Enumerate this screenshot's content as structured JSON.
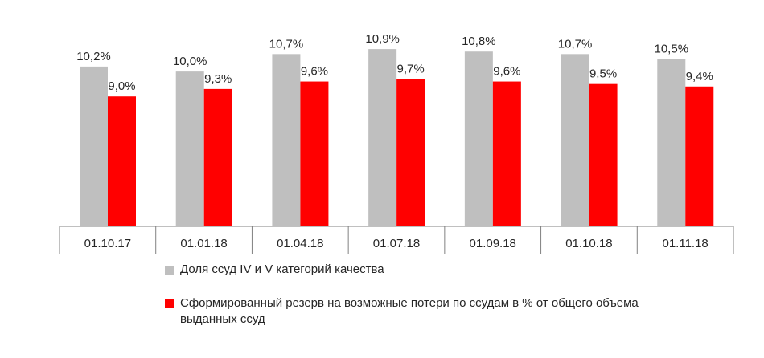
{
  "chart_data": {
    "type": "bar",
    "categories": [
      "01.10.17",
      "01.01.18",
      "01.04.18",
      "01.07.18",
      "01.09.18",
      "01.10.18",
      "01.11.18"
    ],
    "series": [
      {
        "name": "Доля ссуд IV и V категорий качества",
        "color": "#bfbfbf",
        "values": [
          10.2,
          10.0,
          10.7,
          10.9,
          10.8,
          10.7,
          10.5
        ],
        "labels": [
          "10,2%",
          "10,0%",
          "10,7%",
          "10,9%",
          "10,8%",
          "10,7%",
          "10,5%"
        ]
      },
      {
        "name": "Сформированный резерв на возможные потери по ссудам в % от общего объема выданных ссуд",
        "color": "#ff0000",
        "values": [
          9.0,
          9.3,
          9.6,
          9.7,
          9.6,
          9.5,
          9.4
        ],
        "labels": [
          "9,0%",
          "9,3%",
          "9,6%",
          "9,7%",
          "9,6%",
          "9,5%",
          "9,4%"
        ]
      }
    ],
    "ylim": [
      3.8,
      11.0
    ],
    "grid": false,
    "legend_position": "bottom"
  }
}
